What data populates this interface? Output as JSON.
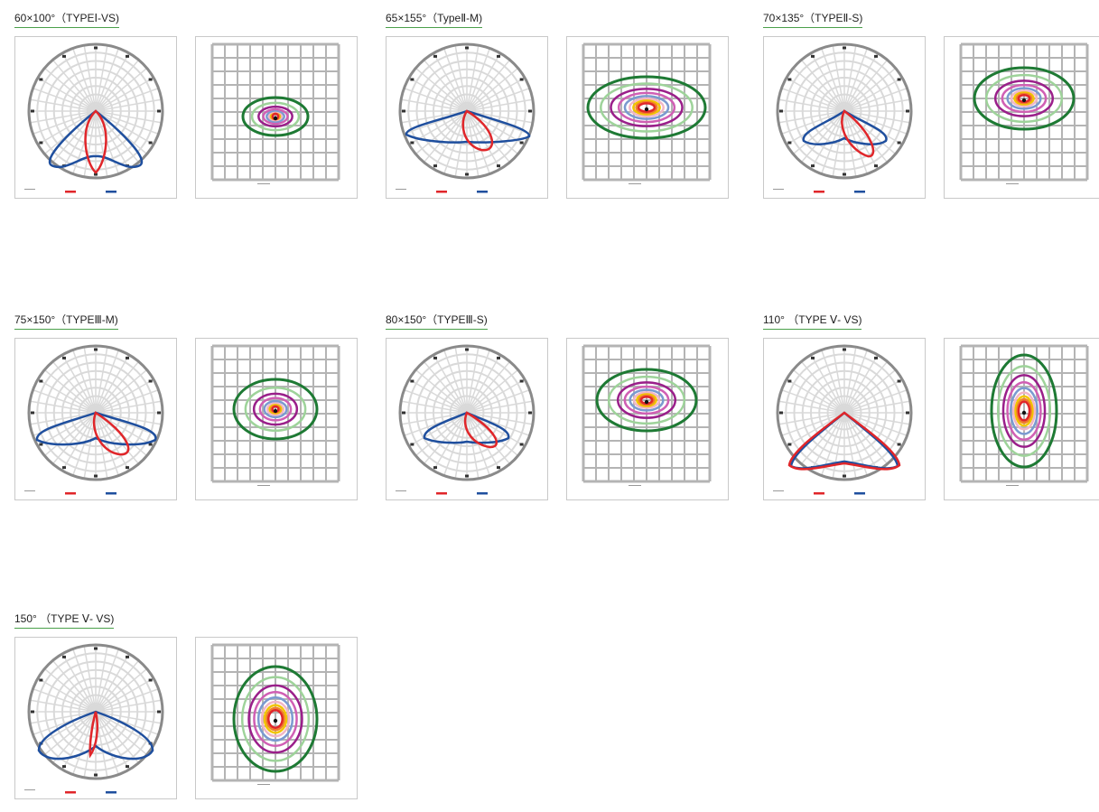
{
  "items": [
    {
      "title": "60×100°（TYPEⅠ-VS)",
      "polar_variant": "vs1",
      "iso_variant": "flat"
    },
    {
      "title": "65×155°（TypeⅡ-M)",
      "polar_variant": "m2",
      "iso_variant": "wide"
    },
    {
      "title": "70×135°（TYPEⅡ-S)",
      "polar_variant": "s2",
      "iso_variant": "mid"
    },
    {
      "title": "75×150°（TYPEⅢ-M)",
      "polar_variant": "m3",
      "iso_variant": "small"
    },
    {
      "title": "80×150°（TYPEⅢ-S)",
      "polar_variant": "s3",
      "iso_variant": "mid"
    },
    {
      "title": "110° （TYPE Ⅴ- VS)",
      "polar_variant": "v110",
      "iso_variant": "oval"
    },
    {
      "title": "150° （TYPE Ⅴ- VS)",
      "polar_variant": "v150",
      "iso_variant": "round"
    }
  ],
  "colors": {
    "c0_180": "#e0262a",
    "c90_270": "#1f4f9e",
    "grid": "#d9d9d9",
    "rim": "#8a8a8a",
    "iso": [
      "#1e7a34",
      "#9ed39a",
      "#9a1f8a",
      "#d05fb4",
      "#7b9ad0",
      "#f1b6c6",
      "#f2c400",
      "#f07f2a",
      "#e0262a"
    ]
  }
}
